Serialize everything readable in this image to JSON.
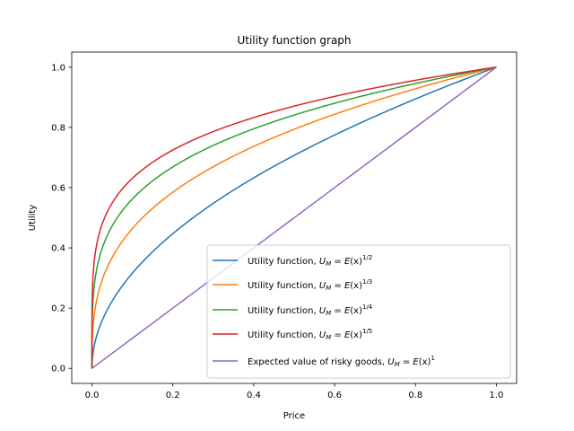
{
  "chart_data": {
    "type": "line",
    "title": "Utility function graph",
    "xlabel": "Price",
    "ylabel": "Utility",
    "xlim": [
      -0.05,
      1.05
    ],
    "ylim": [
      -0.05,
      1.05
    ],
    "xticks": [
      "0.0",
      "0.2",
      "0.4",
      "0.6",
      "0.8",
      "1.0"
    ],
    "yticks": [
      "0.0",
      "0.2",
      "0.4",
      "0.6",
      "0.8",
      "1.0"
    ],
    "grid": false,
    "legend_position": "lower-right",
    "series": [
      {
        "name": "Utility function, U_M = E(x)^{1/2}",
        "exponent": 0.5,
        "color": "#1f77b4",
        "x": [
          0,
          0.01,
          0.05,
          0.1,
          0.2,
          0.3,
          0.4,
          0.5,
          0.6,
          0.7,
          0.8,
          0.9,
          1.0
        ],
        "y": [
          0,
          0.1,
          0.224,
          0.316,
          0.447,
          0.548,
          0.632,
          0.707,
          0.775,
          0.837,
          0.894,
          0.949,
          1.0
        ]
      },
      {
        "name": "Utility function, U_M = E(x)^{1/3}",
        "exponent": 0.3333333,
        "color": "#ff7f0e",
        "x": [
          0,
          0.01,
          0.05,
          0.1,
          0.2,
          0.3,
          0.4,
          0.5,
          0.6,
          0.7,
          0.8,
          0.9,
          1.0
        ],
        "y": [
          0,
          0.215,
          0.368,
          0.464,
          0.585,
          0.669,
          0.737,
          0.794,
          0.843,
          0.888,
          0.928,
          0.965,
          1.0
        ]
      },
      {
        "name": "Utility function, U_M = E(x)^{1/4}",
        "exponent": 0.25,
        "color": "#2ca02c",
        "x": [
          0,
          0.01,
          0.05,
          0.1,
          0.2,
          0.3,
          0.4,
          0.5,
          0.6,
          0.7,
          0.8,
          0.9,
          1.0
        ],
        "y": [
          0,
          0.316,
          0.473,
          0.562,
          0.669,
          0.74,
          0.795,
          0.841,
          0.88,
          0.915,
          0.946,
          0.974,
          1.0
        ]
      },
      {
        "name": "Utility function, U_M = E(x)^{1/5}",
        "exponent": 0.2,
        "color": "#d62728",
        "x": [
          0,
          0.01,
          0.05,
          0.1,
          0.2,
          0.3,
          0.4,
          0.5,
          0.6,
          0.7,
          0.8,
          0.9,
          1.0
        ],
        "y": [
          0,
          0.398,
          0.549,
          0.631,
          0.725,
          0.786,
          0.833,
          0.871,
          0.903,
          0.931,
          0.956,
          0.979,
          1.0
        ]
      },
      {
        "name": "Expected value of risky goods, U_M = E(x)^1",
        "exponent": 1,
        "color": "#9467bd",
        "x": [
          0,
          0.2,
          0.4,
          0.6,
          0.8,
          1.0
        ],
        "y": [
          0,
          0.2,
          0.4,
          0.6,
          0.8,
          1.0
        ]
      }
    ],
    "legend": [
      {
        "prefix": "Utility function, ",
        "exp": "1/2"
      },
      {
        "prefix": "Utility function, ",
        "exp": "1/3"
      },
      {
        "prefix": "Utility function, ",
        "exp": "1/4"
      },
      {
        "prefix": "Utility function, ",
        "exp": "1/5"
      },
      {
        "prefix": "Expected value of risky goods, ",
        "exp": "1"
      }
    ]
  }
}
